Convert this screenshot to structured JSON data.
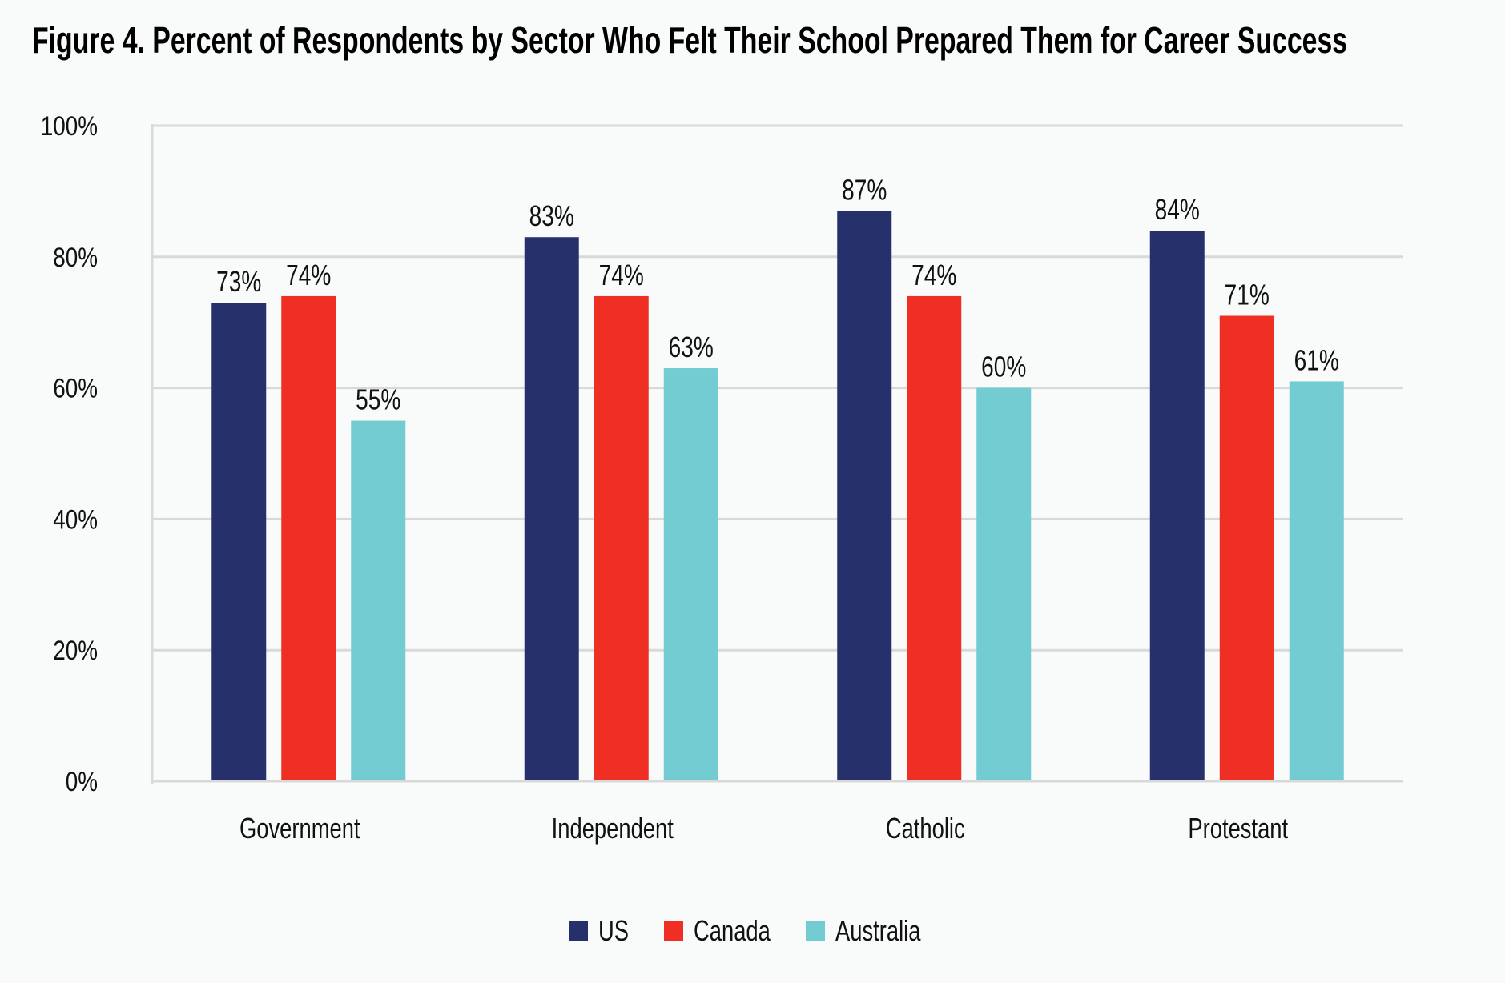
{
  "chart_data": {
    "type": "bar",
    "title": "Figure 4. Percent of Respondents by Sector Who Felt Their School Prepared Them for Career Success",
    "xlabel": "",
    "ylabel": "",
    "categories": [
      "Government",
      "Independent",
      "Catholic",
      "Protestant"
    ],
    "series": [
      {
        "name": "US",
        "color": "#26316B",
        "values": [
          73,
          83,
          87,
          84
        ]
      },
      {
        "name": "Canada",
        "color": "#EF2E24",
        "values": [
          74,
          74,
          74,
          71
        ]
      },
      {
        "name": "Australia",
        "color": "#72CCD1",
        "values": [
          55,
          63,
          60,
          61
        ]
      }
    ],
    "ylim": [
      0,
      100
    ],
    "yticks": [
      0,
      20,
      40,
      60,
      80,
      100
    ],
    "ytick_labels": [
      "0%",
      "20%",
      "40%",
      "60%",
      "80%",
      "100%"
    ],
    "value_suffix": "%",
    "grid": true,
    "legend_position": "bottom-center"
  },
  "colors": {
    "background": "#F9FAFA",
    "grid": "#D9D9D9",
    "text": "#111111"
  }
}
